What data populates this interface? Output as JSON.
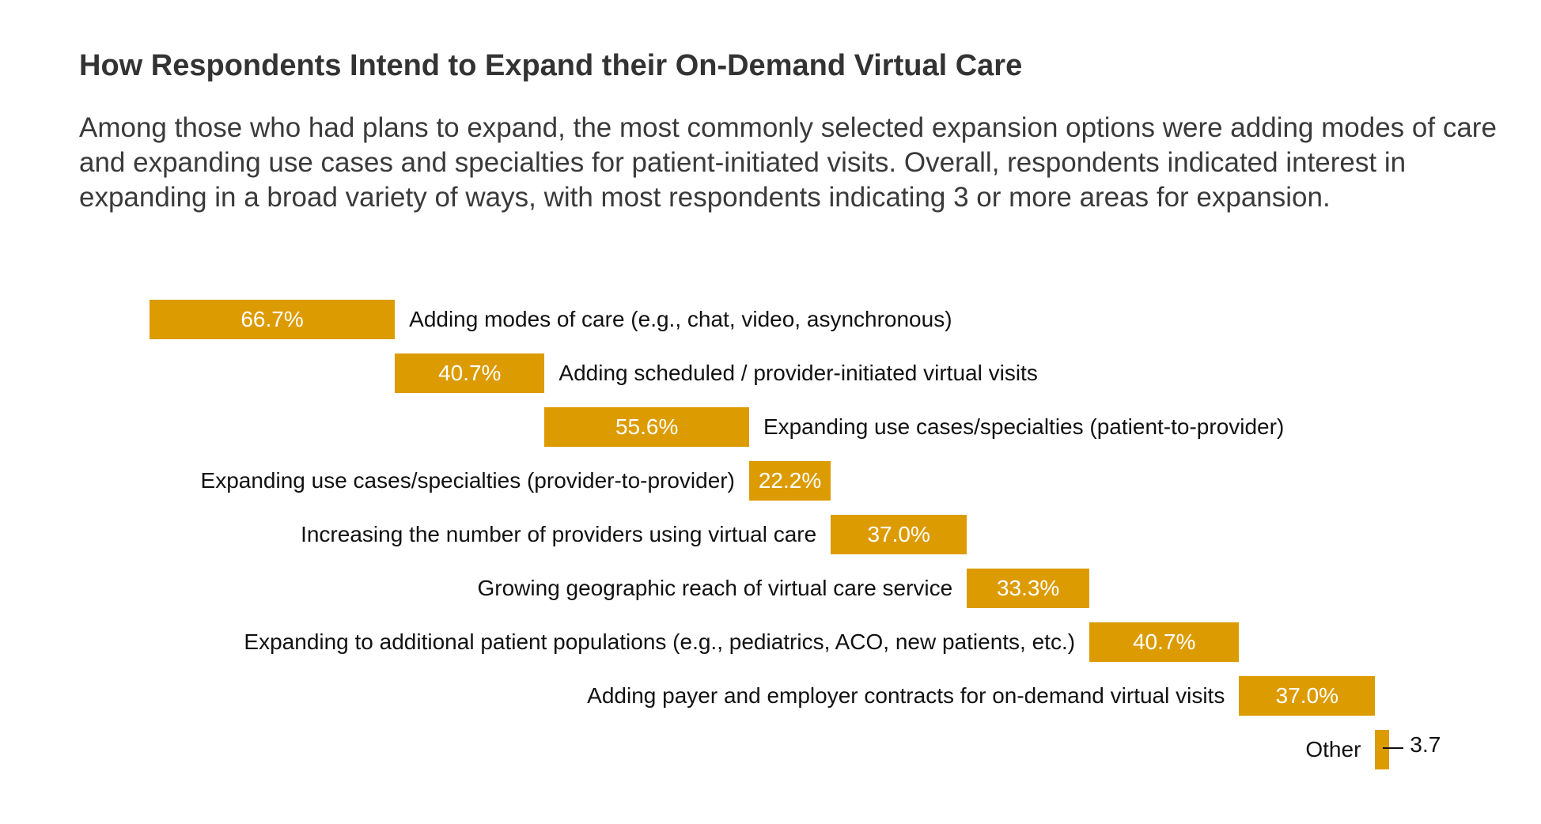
{
  "title": "How Respondents Intend to Expand their On-Demand Virtual Care",
  "subtitle": "Among those who had plans to expand, the most commonly selected expansion options were adding modes of care and expanding use cases and specialties for patient-initiated visits. Overall, respondents indicated interest in expanding in a broad variety of ways, with most respondents indicating 3 or more areas for expansion.",
  "chart_data": {
    "type": "bar",
    "orientation": "horizontal-waterfall",
    "title": "How Respondents Intend to Expand their On-Demand Virtual Care",
    "xlabel": "",
    "ylabel": "",
    "bar_color": "#dc9b00",
    "categories": [
      "Adding modes of care (e.g., chat, video, asynchronous)",
      "Adding scheduled / provider-initiated virtual visits",
      "Expanding use cases/specialties (patient-to-provider)",
      "Expanding use cases/specialties (provider-to-provider)",
      "Increasing the number of providers using virtual care",
      "Growing geographic reach of virtual care service",
      "Expanding to additional patient populations (e.g., pediatrics, ACO, new patients, etc.)",
      "Adding payer and employer contracts for on-demand virtual visits",
      "Other"
    ],
    "values": [
      66.7,
      40.7,
      55.6,
      22.2,
      37.0,
      33.3,
      40.7,
      37.0,
      3.7
    ],
    "value_labels": [
      "66.7%",
      "40.7%",
      "55.6%",
      "22.2%",
      "37.0%",
      "33.3%",
      "40.7%",
      "37.0%",
      "3.7"
    ],
    "label_side": [
      "right",
      "right",
      "right",
      "left",
      "left",
      "left",
      "left",
      "left",
      "left"
    ]
  }
}
